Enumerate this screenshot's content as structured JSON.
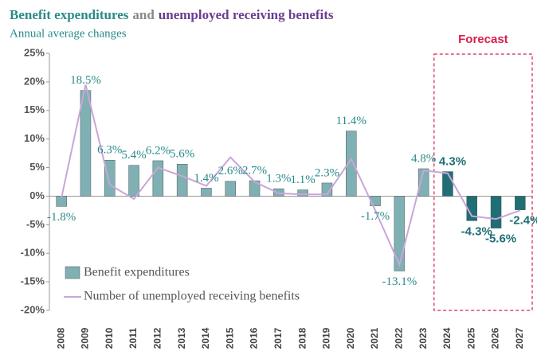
{
  "chart_data": {
    "type": "bar_line",
    "title": [
      "Benefit expenditures",
      "and",
      "unemployed receiving benefits"
    ],
    "title_colors": [
      "#2a8a8a",
      "#888888",
      "#6b3d8f"
    ],
    "subtitle": "Annual average changes",
    "categories": [
      "2008",
      "2009",
      "2010",
      "2011",
      "2012",
      "2013",
      "2014",
      "2015",
      "2016",
      "2017",
      "2018",
      "2019",
      "2020",
      "2021",
      "2022",
      "2023",
      "2024",
      "2025",
      "2026",
      "2027"
    ],
    "series": [
      {
        "name": "Benefit expenditures",
        "type": "bar",
        "color": "#7fb0b4",
        "forecast_color": "#1f6f75",
        "values": [
          -1.8,
          18.5,
          6.3,
          5.4,
          6.2,
          5.6,
          1.4,
          2.6,
          2.7,
          1.3,
          1.1,
          2.3,
          11.4,
          -1.7,
          -13.1,
          4.8,
          4.3,
          -4.3,
          -5.6,
          -2.4
        ],
        "value_labels": [
          "-1.8%",
          "18.5%",
          "6.3%",
          "5.4%",
          "6.2%",
          "5.6%",
          "1.4%",
          "2.6%",
          "2.7%",
          "1.3%",
          "1.1%",
          "2.3%",
          "11.4%",
          "-1.7%",
          "-13.1%",
          "4.8%",
          "4.3%",
          "-4.3%",
          "-5.6%",
          "-2.4%"
        ]
      },
      {
        "name": "Number of unemployed receiving benefits",
        "type": "line",
        "color": "#c9a6d8",
        "values": [
          -0.3,
          19.5,
          2,
          -0.5,
          5,
          3.5,
          1.8,
          6.8,
          2.5,
          0.5,
          0.3,
          0.3,
          6.5,
          -2.5,
          -12,
          4.5,
          4,
          -3.5,
          -4,
          -2.5
        ]
      }
    ],
    "ylim": [
      -20,
      25
    ],
    "yticks": [
      {
        "value": -20,
        "label": "-20%"
      },
      {
        "value": -15,
        "label": "-15%"
      },
      {
        "value": -10,
        "label": "-10%"
      },
      {
        "value": -5,
        "label": "-5%"
      },
      {
        "value": 0,
        "label": "0%"
      },
      {
        "value": 5,
        "label": "5%"
      },
      {
        "value": 10,
        "label": "10%"
      },
      {
        "value": 15,
        "label": "15%"
      },
      {
        "value": 20,
        "label": "20%"
      },
      {
        "value": 25,
        "label": "25%"
      }
    ],
    "annotations": [
      {
        "text": "Forecast",
        "from": "2024",
        "to": "2027",
        "color": "#d6204a"
      }
    ],
    "legend": "bottom-left"
  }
}
